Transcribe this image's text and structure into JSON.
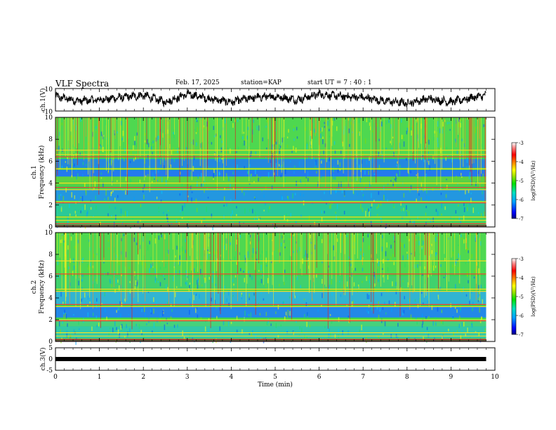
{
  "header": {
    "title": "VLF Spectra",
    "date": "Feb. 17, 2025",
    "station": "station=KAP",
    "start_ut": "start  UT =  7 : 40 : 1"
  },
  "colors": {
    "spectrogram_background": "#3cd450",
    "waveform": "#000000",
    "colorbar_stops": [
      "#000080",
      "#0000ff",
      "#00a0ff",
      "#00e0c0",
      "#00e000",
      "#a0e000",
      "#ffff00",
      "#ff8000",
      "#ff0000",
      "#ff8080",
      "#ffffff"
    ]
  },
  "chart_data": [
    {
      "type": "line",
      "panel": "ch1-waveform",
      "ylabel": "ch.1(V)",
      "ylim": [
        -10,
        10
      ],
      "yticks": [
        "10",
        "-10"
      ],
      "xlim": [
        0,
        10
      ],
      "x": [
        0,
        0.5,
        1,
        1.5,
        2,
        2.5,
        3,
        3.5,
        4,
        4.5,
        5,
        5.5,
        6,
        6.5,
        7,
        7.5,
        8,
        8.5,
        9,
        9.5,
        9.8
      ],
      "values": [
        3,
        -1,
        0,
        2,
        4,
        -2,
        5,
        1,
        -2,
        2,
        3,
        0,
        5,
        3,
        2,
        -1,
        -3,
        1,
        -2,
        2,
        4
      ]
    },
    {
      "type": "heatmap",
      "panel": "ch1-spectrogram",
      "ylabel": "ch.1",
      "ylabel2": "Frequency (kHz)",
      "yticks": [
        "0",
        "2",
        "4",
        "6",
        "8",
        "10"
      ],
      "ylim": [
        0,
        10
      ],
      "xlim": [
        0,
        9.8
      ],
      "colorbar": {
        "label": "log(PSD)(V²/Hz)",
        "ticks": [
          "-3",
          "-4",
          "-5",
          "-6",
          "-7"
        ],
        "range": [
          -7,
          -3
        ]
      },
      "bands_khz": [
        {
          "from": 0.2,
          "to": 0.9,
          "color": "#40d060"
        },
        {
          "from": 1.0,
          "to": 2.2,
          "color": "#28c8a0"
        },
        {
          "from": 2.4,
          "to": 3.4,
          "color": "#2090f0"
        },
        {
          "from": 3.8,
          "to": 4.6,
          "color": "#60d040"
        },
        {
          "from": 4.6,
          "to": 5.2,
          "color": "#2070ff"
        },
        {
          "from": 5.4,
          "to": 6.2,
          "color": "#2080f0"
        },
        {
          "from": 6.6,
          "to": 10.0,
          "color": "#50d850"
        }
      ],
      "lines_khz": [
        0.3,
        0.6,
        0.9,
        2.2,
        2.3,
        3.4,
        3.6,
        4.0,
        5.3,
        6.4,
        6.6,
        7.0
      ]
    },
    {
      "type": "heatmap",
      "panel": "ch2-spectrogram",
      "ylabel": "ch.2",
      "ylabel2": "Frequency (kHz)",
      "yticks": [
        "0",
        "2",
        "4",
        "6",
        "8",
        "10"
      ],
      "ylim": [
        0,
        10
      ],
      "xlim": [
        0,
        9.8
      ],
      "colorbar": {
        "label": "log(PSD)(V²/Hz)",
        "ticks": [
          "-3",
          "-4",
          "-5",
          "-6",
          "-7"
        ],
        "range": [
          -7,
          -3
        ]
      },
      "bands_khz": [
        {
          "from": 0.3,
          "to": 1.4,
          "color": "#30c8b0"
        },
        {
          "from": 1.4,
          "to": 2.0,
          "color": "#48d080"
        },
        {
          "from": 2.2,
          "to": 3.2,
          "color": "#2080f8"
        },
        {
          "from": 3.4,
          "to": 4.6,
          "color": "#30b0e0"
        },
        {
          "from": 4.8,
          "to": 6.0,
          "color": "#40d070"
        },
        {
          "from": 6.2,
          "to": 10.0,
          "color": "#50d850"
        }
      ],
      "lines_khz": [
        0.2,
        0.5,
        0.8,
        1.9,
        2.0,
        3.2,
        3.4,
        4.6,
        4.8,
        6.2,
        7.4
      ]
    },
    {
      "type": "line",
      "panel": "ch3-waveform",
      "ylabel": "ch.3(V)",
      "ylim": [
        -5,
        5
      ],
      "yticks": [
        "5",
        "0",
        "-5"
      ],
      "xlim": [
        0,
        10
      ],
      "x": [
        0,
        9.8
      ],
      "values": [
        0,
        0
      ],
      "xlabel": "Time (min)",
      "xticks": [
        "0",
        "1",
        "2",
        "3",
        "4",
        "5",
        "6",
        "7",
        "8",
        "9",
        "10"
      ]
    }
  ]
}
